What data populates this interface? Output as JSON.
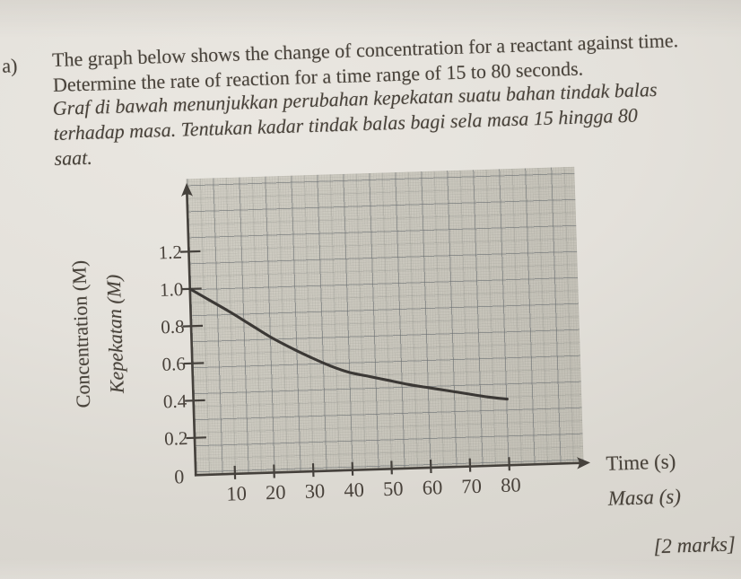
{
  "page": {
    "part_label": "a)",
    "question_en_line1": "The graph below shows the change of concentration for a reactant against time.",
    "question_en_line2": "Determine the rate of reaction for a time range of 15 to 80 seconds.",
    "question_ms_line1": "Graf di bawah menunjukkan perubahan kepekatan suatu bahan tindak balas",
    "question_ms_line2": "terhadap masa. Tentukan kadar tindak balas bagi sela masa 15 hingga 80",
    "question_ms_line3": "saat.",
    "marks_label": "[2 marks]"
  },
  "chart_data": {
    "type": "line",
    "title": "",
    "xlabel": "Time (s)",
    "xlabel_translation": "Masa (s)",
    "ylabel": "Concentration (M)",
    "ylabel_translation": "Kepekatan (M)",
    "x_ticks": [
      10,
      20,
      30,
      40,
      50,
      60,
      70,
      80
    ],
    "x_tick_labels": [
      "10",
      "20",
      "30",
      "40",
      "50",
      "60",
      "70",
      "80"
    ],
    "y_ticks": [
      0.2,
      0.4,
      0.6,
      0.8,
      1.0,
      1.2
    ],
    "y_tick_labels": [
      "0.2",
      "0.4",
      "0.6",
      "0.8",
      "1.0",
      "1.2"
    ],
    "origin_label": "0",
    "xlim": [
      0,
      98
    ],
    "ylim": [
      0,
      1.57
    ],
    "grid": true,
    "legend": false,
    "series": [
      {
        "name": "reactant concentration",
        "x": [
          0,
          5,
          10,
          15,
          20,
          25,
          30,
          35,
          40,
          45,
          50,
          55,
          60,
          65,
          70,
          75,
          80
        ],
        "y": [
          1.0,
          0.935,
          0.87,
          0.8,
          0.73,
          0.67,
          0.615,
          0.565,
          0.525,
          0.5,
          0.475,
          0.45,
          0.43,
          0.41,
          0.39,
          0.37,
          0.355
        ]
      }
    ],
    "colors": {
      "curve": "#3b3835",
      "axis": "#45413c",
      "ink": "#49423b",
      "grid_major": "#686d71",
      "graph_paper": "#cbc8be",
      "page_light": "#eae7e1",
      "page_dark": "#d6d3cc"
    }
  }
}
